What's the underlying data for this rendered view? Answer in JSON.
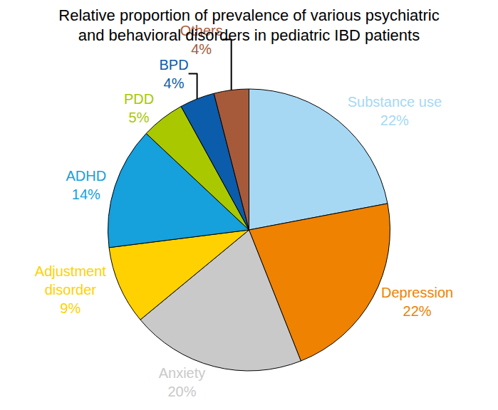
{
  "chart_data": {
    "type": "pie",
    "title": "Relative proportion of prevalence of various psychiatric and behavioral disorders in pediatric IBD patients",
    "categories": [
      "Substance use",
      "Depression",
      "Anxiety",
      "Adjustment disorder",
      "ADHD",
      "PDD",
      "BPD",
      "Others"
    ],
    "values": [
      22,
      22,
      20,
      9,
      14,
      5,
      4,
      4
    ],
    "value_labels": [
      "22%",
      "22%",
      "20%",
      "9%",
      "14%",
      "5%",
      "4%",
      "4%"
    ],
    "colors": [
      "#a6d8f4",
      "#ef8200",
      "#c9c9c9",
      "#ffd100",
      "#16a0dc",
      "#a9c800",
      "#0b5cab",
      "#a65a3a"
    ],
    "data_labels": true
  }
}
